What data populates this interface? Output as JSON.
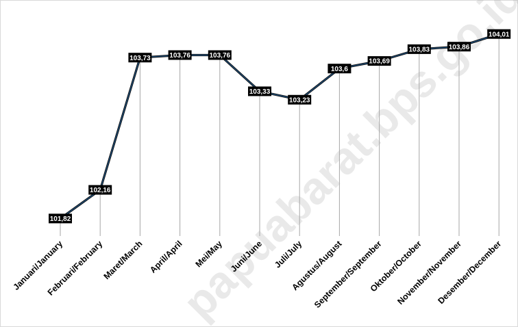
{
  "watermark": "papuabarat.bps.go.id",
  "chart_data": {
    "type": "line",
    "categories": [
      "Januari/January",
      "Februari/February",
      "Maret/March",
      "April/April",
      "Mei/May",
      "Juni/June",
      "Juli/July",
      "Agustus/August",
      "September/September",
      "Oktober/October",
      "November/November",
      "Desember/December"
    ],
    "series": [
      {
        "values": [
          101.82,
          102.16,
          103.73,
          103.76,
          103.76,
          103.33,
          103.23,
          103.6,
          103.69,
          103.83,
          103.86,
          104.01
        ],
        "labels": [
          "101,82",
          "102,16",
          "103,73",
          "103,76",
          "103,76",
          "103,33",
          "103,23",
          "103,6",
          "103,69",
          "103,83",
          "103,86",
          "104,01"
        ]
      }
    ],
    "ylim": [
      100.8,
      104.3
    ],
    "grid": "vertical drop lines",
    "title": "",
    "xlabel": "",
    "ylabel": "",
    "colors": {
      "line": "#1f4e79",
      "label_bg": "#000000",
      "label_text": "#ffffff",
      "drop_line": "#a6a6a6"
    }
  }
}
